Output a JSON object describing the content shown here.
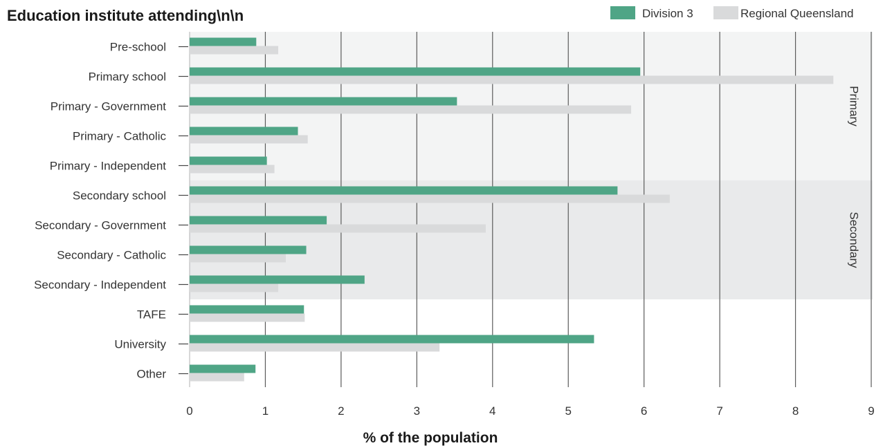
{
  "chart_data": {
    "type": "bar",
    "orientation": "horizontal",
    "title": "Education institute attending\\n\\n",
    "xlabel": "% of the population",
    "ylabel": "",
    "xlim": [
      0,
      9
    ],
    "xticks": [
      "0",
      "1",
      "2",
      "3",
      "4",
      "5",
      "6",
      "7",
      "8",
      "9"
    ],
    "grid": "vertical",
    "legend_position": "top-right",
    "categories": [
      "Pre-school",
      "Primary school",
      "Primary - Government",
      "Primary - Catholic",
      "Primary - Independent",
      "Secondary school",
      "Secondary - Government",
      "Secondary - Catholic",
      "Secondary - Independent",
      "TAFE",
      "University",
      "Other"
    ],
    "series": [
      {
        "name": "Division 3",
        "color": "#4fa586",
        "values": [
          0.88,
          5.95,
          3.53,
          1.43,
          1.02,
          5.65,
          1.81,
          1.54,
          2.31,
          1.51,
          5.34,
          0.87
        ]
      },
      {
        "name": "Regional Queensland",
        "color": "#d9dadb",
        "values": [
          1.17,
          8.5,
          5.83,
          1.56,
          1.12,
          6.34,
          3.91,
          1.27,
          1.17,
          1.52,
          3.3,
          0.72
        ]
      }
    ],
    "bands": [
      {
        "label": "Primary",
        "from_category": 0,
        "to_category": 4,
        "color": "#f3f4f4"
      },
      {
        "label": "Secondary",
        "from_category": 5,
        "to_category": 8,
        "color": "#e9eaeb"
      }
    ]
  }
}
